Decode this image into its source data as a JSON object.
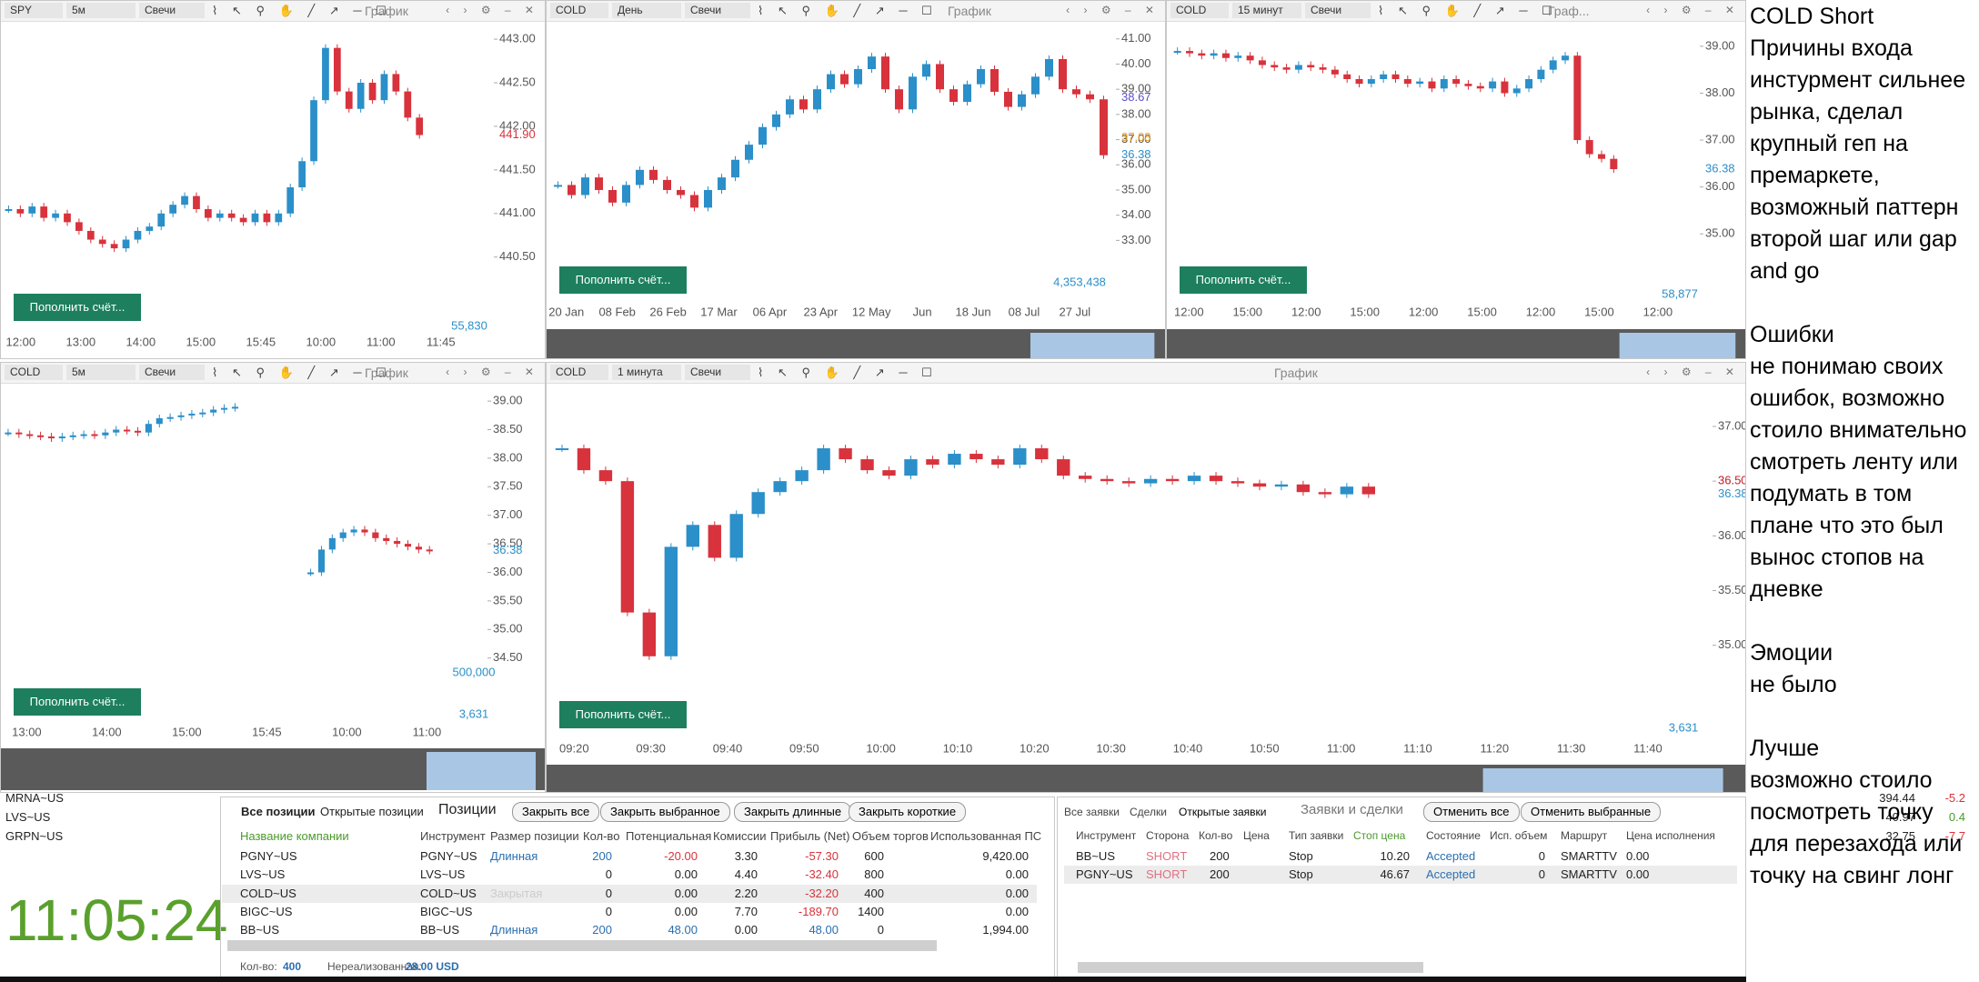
{
  "charts": [
    {
      "symbol": "SPY",
      "interval": "5м",
      "style": "Свечи",
      "label": "График",
      "button": "Пополнить счёт...",
      "ylim": [
        440.33,
        443.22
      ],
      "price_ticks": [
        {
          "value": 443,
          "label": "443.00"
        },
        {
          "value": 442.5,
          "label": "442.50"
        },
        {
          "value": 442,
          "label": "442.00"
        },
        {
          "value": 441.5,
          "label": "441.50"
        },
        {
          "value": 441,
          "label": "441.00"
        },
        {
          "value": 440.5,
          "label": "440.50"
        }
      ],
      "time_ticks": [
        "12:00",
        "13:00",
        "14:00",
        "15:00",
        "15:45",
        "10:00",
        "11:00",
        "11:45"
      ],
      "last_labels": [
        {
          "value": 441.9,
          "label": "441.90",
          "color": "#d8323c"
        }
      ],
      "volume_labels": [
        "55,830"
      ],
      "closes": [
        441.05,
        441.0,
        441.08,
        440.95,
        441.0,
        440.9,
        440.8,
        440.7,
        440.65,
        440.6,
        440.7,
        440.8,
        440.85,
        441.0,
        441.1,
        441.2,
        441.05,
        440.95,
        441.0,
        440.95,
        440.9,
        441.0,
        440.9,
        441.0,
        441.3,
        441.6,
        442.3,
        442.9,
        442.4,
        442.2,
        442.5,
        442.3,
        442.6,
        442.4,
        442.1,
        441.9
      ]
    },
    {
      "symbol": "COLD",
      "interval": "День",
      "style": "Свечи",
      "label": "График",
      "button": "Пополнить счёт...",
      "ylim": [
        31.75,
        41.75
      ],
      "price_ticks": [
        {
          "value": 41,
          "label": "41.00"
        },
        {
          "value": 40,
          "label": "40.00"
        },
        {
          "value": 39,
          "label": "39.00"
        },
        {
          "value": 38,
          "label": "38.00"
        },
        {
          "value": 37,
          "label": "37.00"
        },
        {
          "value": 36,
          "label": "36.00"
        },
        {
          "value": 35,
          "label": "35.00"
        },
        {
          "value": 34,
          "label": "34.00"
        },
        {
          "value": 33,
          "label": "33.00"
        }
      ],
      "time_ticks": [
        "20 Jan",
        "08 Feb",
        "26 Feb",
        "17 Mar",
        "06 Apr",
        "23 Apr",
        "12 May",
        "Jun",
        "18 Jun",
        "08 Jul",
        "27 Jul"
      ],
      "last_labels": [
        {
          "value": 38.67,
          "label": "38.67",
          "color": "#5a4fc4"
        },
        {
          "value": 37.08,
          "label": "37.08",
          "color": "#f0a020"
        },
        {
          "value": 36.38,
          "label": "36.38",
          "color": "#2b8fc9"
        }
      ],
      "volume_labels": [
        "4,353,438"
      ],
      "closes": [
        35.2,
        34.8,
        35.5,
        35.0,
        34.5,
        35.2,
        35.8,
        35.4,
        35.0,
        34.8,
        34.3,
        35.0,
        35.5,
        36.2,
        36.8,
        37.5,
        38.0,
        38.6,
        38.2,
        39.0,
        39.6,
        39.2,
        39.8,
        40.3,
        39.0,
        38.2,
        39.5,
        40.0,
        39.0,
        38.5,
        39.2,
        39.8,
        38.9,
        38.3,
        38.8,
        39.5,
        40.2,
        39.0,
        38.8,
        38.6,
        36.38
      ]
    },
    {
      "symbol": "COLD",
      "interval": "15 минут",
      "style": "Свечи",
      "label": "Граф...",
      "button": "Пополнить счёт...",
      "ylim": [
        34.19,
        39.56
      ],
      "price_ticks": [
        {
          "value": 39,
          "label": "39.00"
        },
        {
          "value": 38,
          "label": "38.00"
        },
        {
          "value": 37,
          "label": "37.00"
        },
        {
          "value": 36,
          "label": "36.00"
        },
        {
          "value": 35,
          "label": "35.00"
        }
      ],
      "time_ticks": [
        "12:00",
        "15:00",
        "12:00",
        "15:00",
        "12:00",
        "15:00",
        "12:00",
        "15:00",
        "12:00"
      ],
      "last_labels": [
        {
          "value": 36.38,
          "label": "36.38",
          "color": "#2b8fc9"
        }
      ],
      "volume_labels": [
        "58,877"
      ],
      "closes": [
        38.9,
        38.85,
        38.8,
        38.85,
        38.75,
        38.8,
        38.7,
        38.6,
        38.55,
        38.5,
        38.6,
        38.55,
        38.5,
        38.4,
        38.3,
        38.2,
        38.3,
        38.4,
        38.3,
        38.2,
        38.25,
        38.1,
        38.3,
        38.2,
        38.15,
        38.1,
        38.25,
        38.0,
        38.1,
        38.3,
        38.5,
        38.7,
        38.8,
        37.0,
        36.7,
        36.6,
        36.38
      ]
    },
    {
      "symbol": "COLD",
      "interval": "5м",
      "style": "Свечи",
      "label": "График",
      "button": "Пополнить счёт...",
      "ylim": [
        34.32,
        39.4
      ],
      "price_ticks": [
        {
          "value": 39,
          "label": "39.00"
        },
        {
          "value": 38.5,
          "label": "38.50"
        },
        {
          "value": 38,
          "label": "38.00"
        },
        {
          "value": 37.5,
          "label": "37.50"
        },
        {
          "value": 37,
          "label": "37.00"
        },
        {
          "value": 36.5,
          "label": "36.50"
        },
        {
          "value": 36,
          "label": "36.00"
        },
        {
          "value": 35.5,
          "label": "35.50"
        },
        {
          "value": 35,
          "label": "35.00"
        },
        {
          "value": 34.5,
          "label": "34.50"
        }
      ],
      "time_ticks": [
        "13:00",
        "14:00",
        "15:00",
        "15:45",
        "10:00",
        "11:00"
      ],
      "last_labels": [
        {
          "value": 36.38,
          "label": "36.38",
          "color": "#2b8fc9"
        }
      ],
      "volume_labels": [
        "500,000",
        "3,631"
      ],
      "closes": [
        38.45,
        38.42,
        38.4,
        38.38,
        38.35,
        38.38,
        38.4,
        38.42,
        38.4,
        38.45,
        38.5,
        38.48,
        38.45,
        38.6,
        38.7,
        38.72,
        38.75,
        38.78,
        38.8,
        38.85,
        38.88,
        38.9,
        null,
        null,
        null,
        null,
        null,
        null,
        36.0,
        36.4,
        36.6,
        36.7,
        36.75,
        36.7,
        36.6,
        36.55,
        36.5,
        36.45,
        36.4,
        36.38
      ]
    },
    {
      "symbol": "COLD",
      "interval": "1 минута",
      "style": "Свечи",
      "label": "График",
      "button": "Пополнить счёт...",
      "ylim": [
        34.79,
        37.44
      ],
      "price_ticks": [
        {
          "value": 37,
          "label": "37.00"
        },
        {
          "value": 36.5,
          "label": "36.50"
        },
        {
          "value": 36,
          "label": "36.00"
        },
        {
          "value": 35.5,
          "label": "35.50"
        },
        {
          "value": 35,
          "label": "35.00"
        }
      ],
      "time_ticks": [
        "09:20",
        "09:30",
        "09:40",
        "09:50",
        "10:00",
        "10:10",
        "10:20",
        "10:30",
        "10:40",
        "10:50",
        "11:00",
        "11:10",
        "11:20",
        "11:30",
        "11:40"
      ],
      "last_labels": [
        {
          "value": 36.5,
          "label": "36.50",
          "color": "#d8323c"
        },
        {
          "value": 36.38,
          "label": "36.38",
          "color": "#2b8fc9"
        }
      ],
      "volume_labels": [
        "3,631"
      ],
      "closes": [
        36.8,
        36.6,
        36.5,
        35.3,
        34.9,
        35.9,
        36.1,
        35.8,
        36.2,
        36.4,
        36.5,
        36.6,
        36.8,
        36.7,
        36.6,
        36.55,
        36.7,
        36.65,
        36.75,
        36.7,
        36.65,
        36.8,
        36.7,
        36.55,
        36.52,
        36.5,
        36.48,
        36.52,
        36.5,
        36.55,
        36.5,
        36.48,
        36.45,
        36.47,
        36.4,
        36.38,
        36.45,
        36.38
      ]
    }
  ],
  "watchlist": [
    [
      "MRNA~US",
      "394.44",
      "-5.2"
    ],
    [
      "LVS~US",
      "40.97",
      "0.4"
    ],
    [
      "GRPN~US",
      "32.75",
      "-7.7"
    ]
  ],
  "clock": "11:05:24",
  "positions": {
    "tabs": [
      "Все позиции",
      "Открытые позиции"
    ],
    "title": "Позиции",
    "buttons": [
      "Закрыть все",
      "Закрыть выбранное",
      "Закрыть длинные",
      "Закрыть короткие"
    ],
    "columns": [
      "Название компании",
      "Инструмент",
      "Размер позиции",
      "Кол-во",
      "Потенциальная",
      "Комиссии",
      "Прибыль (Net)",
      "Объем торгов",
      "Использованная ПС"
    ],
    "rows": [
      [
        "PGNY~US",
        "PGNY~US",
        "Длинная",
        "200",
        "-20.00",
        "3.30",
        "-57.30",
        "600",
        "9,420.00"
      ],
      [
        "LVS~US",
        "LVS~US",
        null,
        "0",
        "0.00",
        "4.40",
        "-32.40",
        "800",
        "0.00"
      ],
      [
        "COLD~US",
        "COLD~US",
        "Закрытая",
        "0",
        "0.00",
        "2.20",
        "-32.20",
        "400",
        "0.00"
      ],
      [
        "BIGC~US",
        "BIGC~US",
        null,
        "0",
        "0.00",
        "7.70",
        "-189.70",
        "1400",
        "0.00"
      ],
      [
        "BB~US",
        "BB~US",
        "Длинная",
        "200",
        "48.00",
        "0.00",
        "48.00",
        "0",
        "1,994.00"
      ]
    ],
    "footer": [
      "Кол-во:",
      "400",
      "Нереализованная:",
      "28.00 USD"
    ]
  },
  "orders": {
    "tabs": [
      "Все заявки",
      "Сделки",
      "Открытые заявки"
    ],
    "title": "Заявки и сделки",
    "buttons": [
      "Отменить все",
      "Отменить выбранные"
    ],
    "columns": [
      "Инструмент",
      "Сторона",
      "Кол-во",
      "Цена",
      "Тип заявки",
      "Стоп цена",
      "Состояние",
      "Исп. объем",
      "Маршрут",
      "Цена исполнения"
    ],
    "rows": [
      [
        "BB~US",
        "SHORT",
        "200",
        null,
        "Stop",
        "10.20",
        "Accepted",
        "0",
        "SMARTTV",
        "0.00"
      ],
      [
        "PGNY~US",
        "SHORT",
        "200",
        null,
        "Stop",
        "46.67",
        "Accepted",
        "0",
        "SMARTTV",
        "0.00"
      ]
    ]
  },
  "notes": [
    [
      "COLD Short",
      "Причины входа",
      "инстурмент сильнее",
      "рынка, сделал",
      "крупный геп на",
      "премаркете,",
      "возможный паттерн",
      "второй шаг или gap",
      "and go"
    ],
    [
      "Ошибки",
      "не понимаю своих",
      "ошибок, возможно",
      "стоило внимательно",
      "смотреть ленту или",
      "подумать в том",
      "плане что это был",
      "вынос стопов на",
      "дневке"
    ],
    [
      "Эмоции",
      "не было"
    ],
    [
      "Лучше",
      "возможно стоило",
      "посмотреть точку",
      "для перезахода или",
      "точку на свинг лонг"
    ]
  ]
}
